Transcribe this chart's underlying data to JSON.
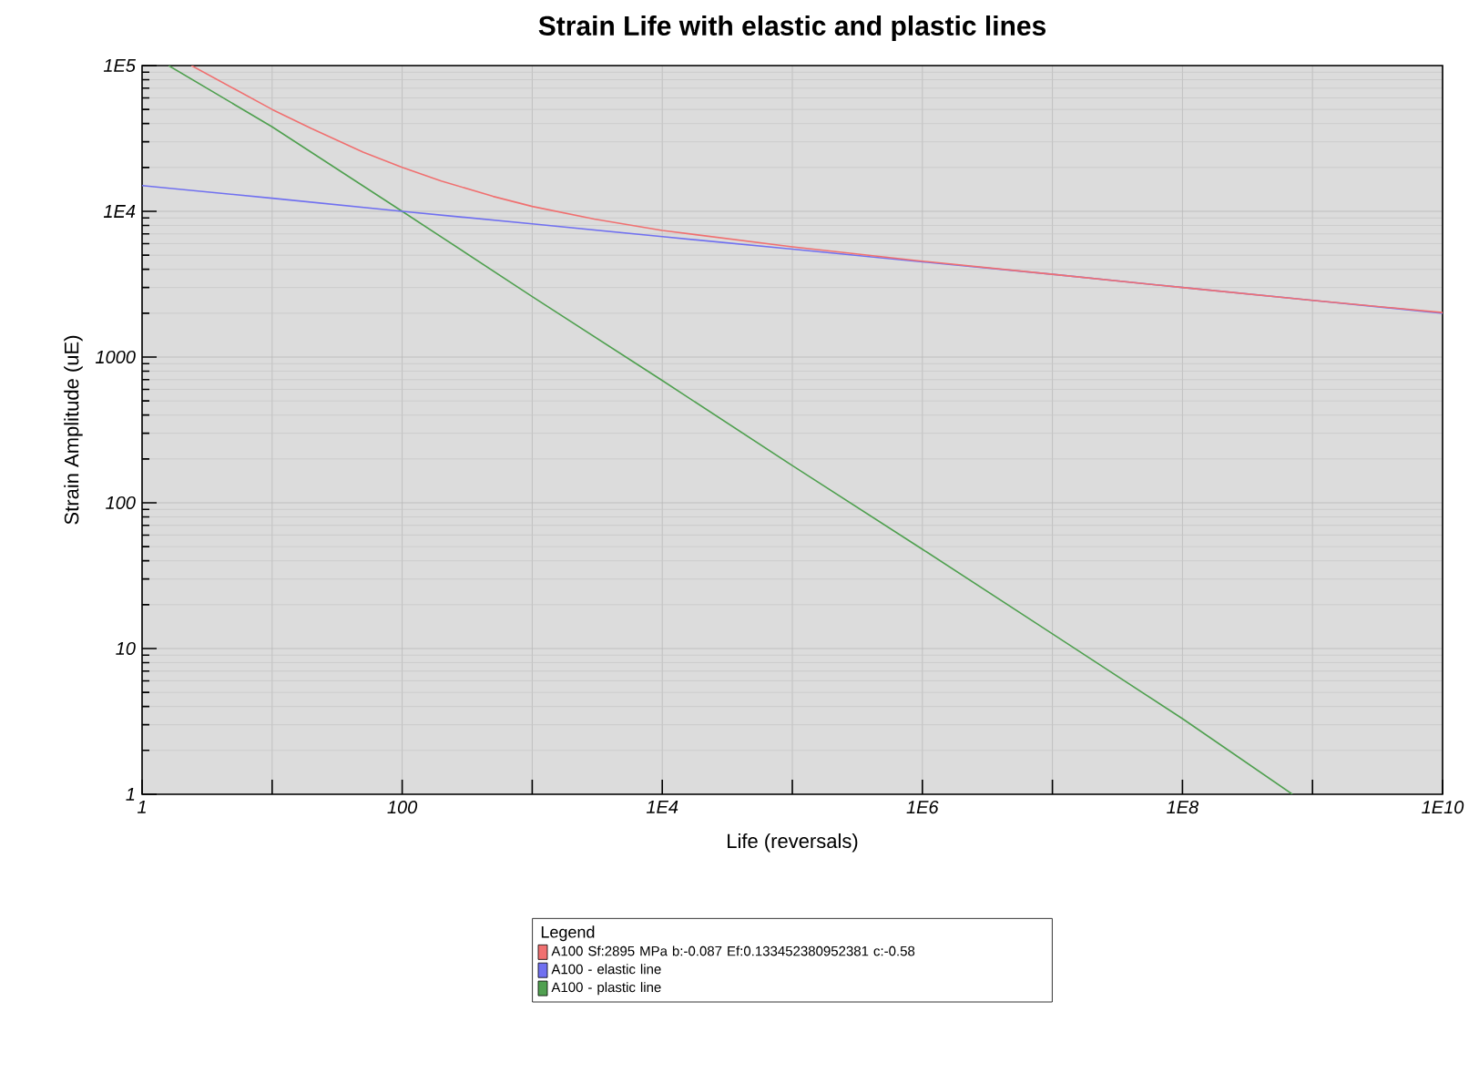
{
  "chart_data": {
    "type": "line",
    "title": "Strain Life with elastic and plastic lines",
    "xlabel": "Life (reversals)",
    "ylabel": "Strain Amplitude (uE)",
    "legend_title": "Legend",
    "legend": "bottom",
    "log": "xy",
    "grid": true,
    "xlim": [
      1,
      10000000000
    ],
    "ylim": [
      1,
      100000
    ],
    "xticks": [
      1,
      {
        "value": 10,
        "label": null
      },
      100,
      {
        "value": 1000,
        "label": null
      },
      {
        "value": 10000,
        "label": "1E4"
      },
      {
        "value": 100000,
        "label": null
      },
      {
        "value": 1000000,
        "label": "1E6"
      },
      {
        "value": 10000000,
        "label": null
      },
      {
        "value": 100000000,
        "label": "1E8"
      },
      {
        "value": 1000000000,
        "label": null
      },
      {
        "value": 10000000000,
        "label": "1E10"
      }
    ],
    "yticks": [
      1,
      10,
      100,
      1000,
      {
        "value": 10000,
        "label": "1E4"
      },
      {
        "value": 100000,
        "label": "1E5"
      }
    ],
    "series": [
      {
        "name": "A100 Sf:2895 MPa  b:-0.087 Ef:0.133452380952381 c:-0.58",
        "color": "#f07070",
        "x": [
          2.4,
          5,
          10,
          20,
          50,
          100,
          200,
          500,
          1000,
          3000,
          10000,
          100000,
          1000000,
          10000000,
          100000000,
          1000000000,
          10000000000
        ],
        "values": [
          100000,
          70000,
          50000,
          37000,
          25500,
          20000,
          16150,
          12660,
          10800,
          8850,
          7400,
          5700,
          4550,
          3700,
          3000,
          2450,
          2020
        ]
      },
      {
        "name": "A100 - elastic line",
        "color": "#7070f0",
        "x": [
          1,
          10,
          100,
          1000,
          10000,
          100000,
          1000000,
          10000000,
          100000000,
          1000000000,
          10000000000
        ],
        "values": [
          15000,
          12300,
          10000,
          8200,
          6700,
          5500,
          4500,
          3700,
          3000,
          2450,
          2000
        ]
      },
      {
        "name": "A100 - plastic line",
        "color": "#50a050",
        "x": [
          1.6,
          10,
          100,
          1000,
          10000,
          100000,
          1000000,
          10000000,
          100000000,
          700000000
        ],
        "values": [
          100000,
          38000,
          10000,
          2600,
          690,
          180,
          48,
          12.6,
          3.3,
          1
        ]
      }
    ]
  }
}
